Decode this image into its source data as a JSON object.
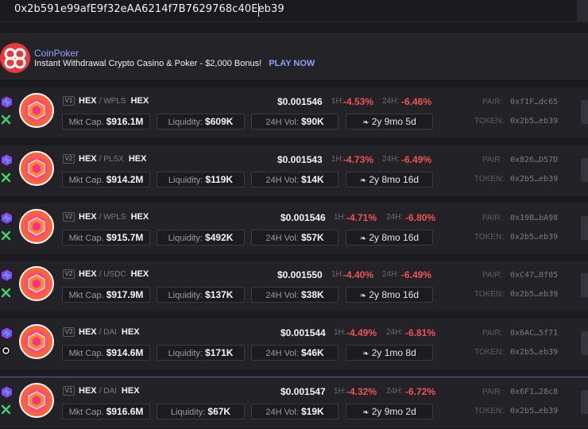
{
  "search": {
    "value": "0x2b591e99afE9f32eAA6214f7B7629768c40Eeb39"
  },
  "ad": {
    "title": "CoinPoker",
    "text": "Instant Withdrawal Crypto Casino & Poker - $2,000 Bonus!",
    "cta": "PLAY NOW"
  },
  "labels": {
    "h1": "1H:",
    "h24": "24H:",
    "pair": "PAIR:",
    "token": "TOKEN:",
    "mcap": "Mkt Cap.",
    "liq": "Liquidity:",
    "vol": "24H Vol:"
  },
  "rows": [
    {
      "version": "V1",
      "base": "HEX",
      "quote": "/ WPLS",
      "name": "HEX",
      "mcap": "$916.1M",
      "liq": "$609K",
      "vol": "$90K",
      "age": "2y 9mo 5d",
      "price": "$0.001546",
      "h1": "-4.53%",
      "h24": "-6.46%",
      "pair": "0xf1F…dc65",
      "token": "0x2b5…eb39"
    },
    {
      "version": "V2",
      "base": "HEX",
      "quote": "/ PLSX",
      "name": "HEX",
      "mcap": "$914.2M",
      "liq": "$119K",
      "vol": "$14K",
      "age": "2y 8mo 16d",
      "price": "$0.001543",
      "h1": "-4.73%",
      "h24": "-6.49%",
      "pair": "0x826…D57D",
      "token": "0x2b5…eb39"
    },
    {
      "version": "V2",
      "base": "HEX",
      "quote": "/ WPLS",
      "name": "HEX",
      "mcap": "$915.7M",
      "liq": "$492K",
      "vol": "$57K",
      "age": "2y 8mo 16d",
      "price": "$0.001546",
      "h1": "-4.71%",
      "h24": "-6.80%",
      "pair": "0x19B…bA98",
      "token": "0x2b5…eb39"
    },
    {
      "version": "V2",
      "base": "HEX",
      "quote": "/ USDC",
      "name": "HEX",
      "mcap": "$917.9M",
      "liq": "$137K",
      "vol": "$38K",
      "age": "2y 8mo 16d",
      "price": "$0.001550",
      "h1": "-4.40%",
      "h24": "-6.49%",
      "pair": "0xC47…0f05",
      "token": "0x2b5…eb39"
    },
    {
      "version": "V3",
      "base": "HEX",
      "quote": "/ DAI",
      "name": "HEX",
      "mcap": "$914.6M",
      "liq": "$171K",
      "vol": "$46K",
      "age": "2y 1mo 8d",
      "price": "$0.001544",
      "h1": "-4.49%",
      "h24": "-6.81%",
      "pair": "0x6AC…5f71",
      "token": "0x2b5…eb39"
    },
    {
      "version": "V1",
      "base": "HEX",
      "quote": "/ DAI",
      "name": "HEX",
      "mcap": "$916.6M",
      "liq": "$67K",
      "vol": "$19K",
      "age": "2y 9mo 2d",
      "price": "$0.001547",
      "h1": "-4.32%",
      "h24": "-6.72%",
      "pair": "0x6F1…28c8",
      "token": "0x2b5…eb39"
    }
  ],
  "colors": {
    "negative": "#ef5454",
    "accent": "#8ea0ff",
    "hex_pink": "#ff2f8c",
    "hex_orange": "#ff6a2a"
  },
  "icons": {
    "chain": "pulsechain-icon",
    "dex": "pulsex-icon",
    "dex_v3": "9inch-icon",
    "age": "sprout-icon"
  }
}
